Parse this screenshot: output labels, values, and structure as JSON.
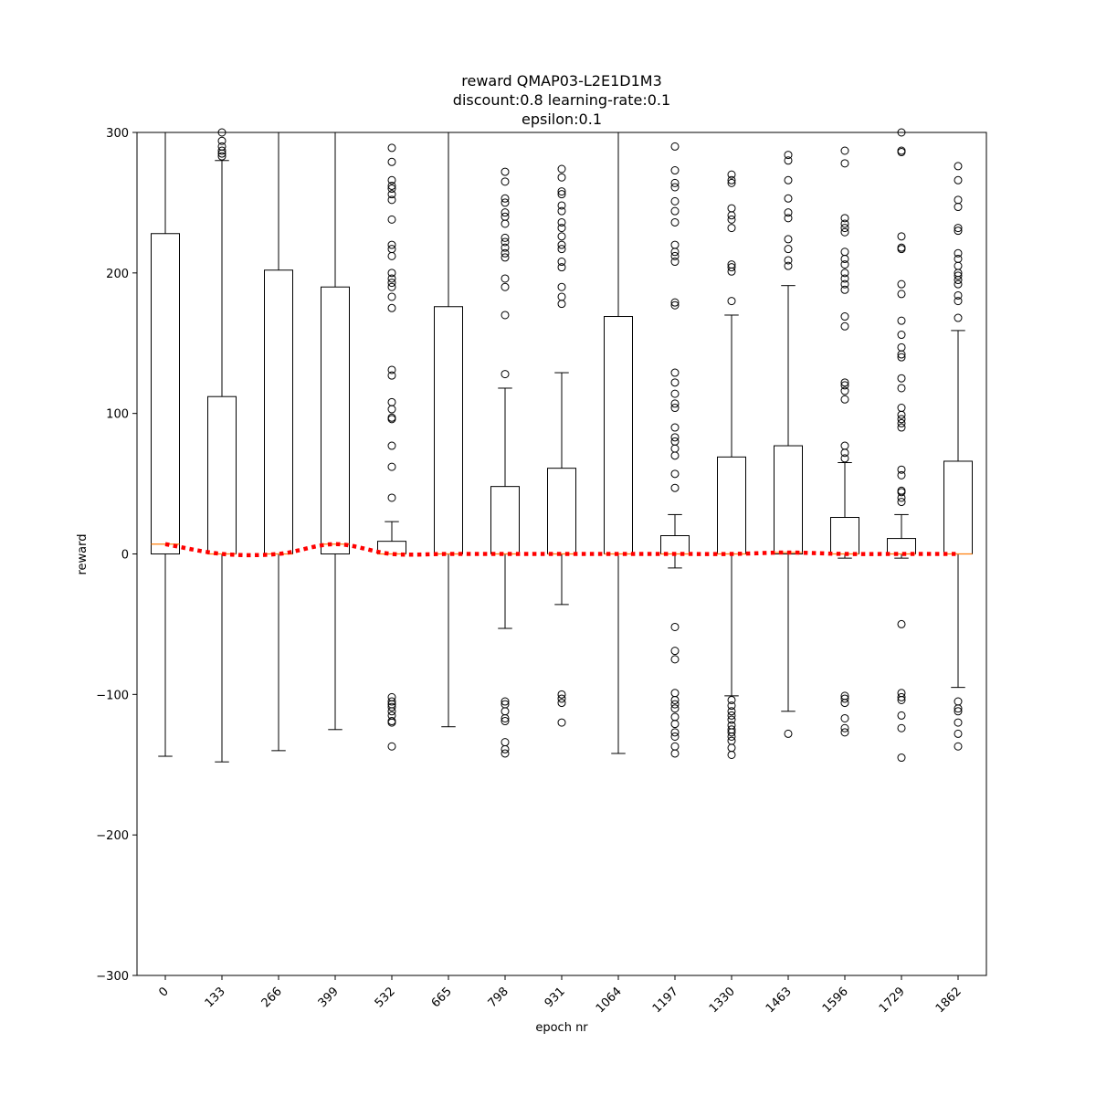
{
  "chart_data": {
    "type": "box",
    "title": [
      "reward QMAP03-L2E1D1M3",
      "discount:0.8 learning-rate:0.1",
      "epsilon:0.1"
    ],
    "xlabel": "epoch nr",
    "ylabel": "reward",
    "ylim": [
      -300,
      300
    ],
    "yticks": [
      -300,
      -200,
      -100,
      0,
      100,
      200,
      300
    ],
    "categories": [
      "0",
      "133",
      "266",
      "399",
      "532",
      "665",
      "798",
      "931",
      "1064",
      "1197",
      "1330",
      "1463",
      "1596",
      "1729",
      "1862"
    ],
    "boxes": [
      {
        "q1": 0,
        "median": 7,
        "q3": 228,
        "whisker_low": -144,
        "whisker_high": 300,
        "outliers": []
      },
      {
        "q1": 0,
        "median": 0,
        "q3": 112,
        "whisker_low": -148,
        "whisker_high": 280,
        "outliers": [
          283,
          285,
          287,
          290,
          294,
          300
        ]
      },
      {
        "q1": 0,
        "median": 0,
        "q3": 202,
        "whisker_low": -140,
        "whisker_high": 300,
        "outliers": []
      },
      {
        "q1": 0,
        "median": 7,
        "q3": 190,
        "whisker_low": -125,
        "whisker_high": 300,
        "outliers": []
      },
      {
        "q1": 0,
        "median": 0,
        "q3": 9,
        "whisker_low": 0,
        "whisker_high": 23,
        "outliers": [
          40,
          62,
          77,
          96,
          97,
          103,
          108,
          127,
          131,
          175,
          183,
          190,
          193,
          196,
          200,
          212,
          217,
          220,
          238,
          252,
          256,
          260,
          262,
          266,
          279,
          289,
          -102,
          -105,
          -107,
          -109,
          -112,
          -115,
          -119,
          -120,
          -137
        ]
      },
      {
        "q1": 0,
        "median": 0,
        "q3": 176,
        "whisker_low": -123,
        "whisker_high": 300,
        "outliers": []
      },
      {
        "q1": 0,
        "median": 0,
        "q3": 48,
        "whisker_low": -53,
        "whisker_high": 118,
        "outliers": [
          128,
          170,
          190,
          196,
          211,
          214,
          218,
          222,
          225,
          235,
          240,
          243,
          250,
          253,
          265,
          272,
          -105,
          -107,
          -112,
          -117,
          -119,
          -134,
          -139,
          -142
        ]
      },
      {
        "q1": 0,
        "median": 0,
        "q3": 61,
        "whisker_low": -36,
        "whisker_high": 129,
        "outliers": [
          178,
          183,
          190,
          204,
          208,
          217,
          220,
          226,
          232,
          236,
          244,
          248,
          256,
          258,
          268,
          274,
          -100,
          -103,
          -106,
          -120
        ]
      },
      {
        "q1": 0,
        "median": 0,
        "q3": 169,
        "whisker_low": -142,
        "whisker_high": 300,
        "outliers": []
      },
      {
        "q1": 0,
        "median": 0,
        "q3": 13,
        "whisker_low": -10,
        "whisker_high": 28,
        "outliers": [
          47,
          57,
          70,
          75,
          80,
          83,
          90,
          104,
          107,
          114,
          122,
          129,
          177,
          179,
          208,
          212,
          215,
          220,
          236,
          244,
          251,
          261,
          264,
          273,
          290,
          -52,
          -69,
          -75,
          -99,
          -104,
          -107,
          -110,
          -116,
          -121,
          -127,
          -130,
          -137,
          -142
        ]
      },
      {
        "q1": 0,
        "median": 0,
        "q3": 69,
        "whisker_low": -101,
        "whisker_high": 170,
        "outliers": [
          180,
          201,
          204,
          206,
          232,
          238,
          241,
          246,
          264,
          266,
          270,
          -104,
          -108,
          -112,
          -115,
          -118,
          -122,
          -125,
          -127,
          -130,
          -133,
          -138,
          -143
        ]
      },
      {
        "q1": 0,
        "median": 1,
        "q3": 77,
        "whisker_low": -112,
        "whisker_high": 191,
        "outliers": [
          205,
          209,
          217,
          224,
          239,
          243,
          253,
          266,
          280,
          284,
          -128
        ]
      },
      {
        "q1": 0,
        "median": 0,
        "q3": 26,
        "whisker_low": -3,
        "whisker_high": 65,
        "outliers": [
          68,
          72,
          77,
          110,
          116,
          120,
          122,
          162,
          169,
          188,
          192,
          196,
          200,
          206,
          210,
          215,
          229,
          232,
          235,
          239,
          278,
          287,
          -101,
          -103,
          -106,
          -117,
          -124,
          -127
        ]
      },
      {
        "q1": 0,
        "median": 0,
        "q3": 11,
        "whisker_low": -3,
        "whisker_high": 28,
        "outliers": [
          37,
          40,
          44,
          45,
          56,
          60,
          90,
          93,
          96,
          99,
          104,
          118,
          125,
          140,
          142,
          147,
          156,
          166,
          185,
          192,
          217,
          218,
          226,
          286,
          287,
          300,
          -50,
          -99,
          -102,
          -104,
          -115,
          -124,
          -145
        ]
      },
      {
        "q1": 0,
        "median": 0,
        "q3": 66,
        "whisker_low": -95,
        "whisker_high": 159,
        "outliers": [
          168,
          180,
          184,
          192,
          195,
          198,
          200,
          205,
          210,
          214,
          230,
          232,
          247,
          252,
          266,
          276,
          -105,
          -110,
          -112,
          -120,
          -128,
          -137
        ]
      }
    ],
    "mean_line": {
      "style": "dotted",
      "color": "#ff0000",
      "values": [
        7,
        0,
        0,
        7,
        0,
        0,
        0,
        0,
        0,
        0,
        0,
        1,
        0,
        0,
        0
      ]
    },
    "median_color": "#ff7f0e",
    "legend": "none",
    "grid": false
  }
}
